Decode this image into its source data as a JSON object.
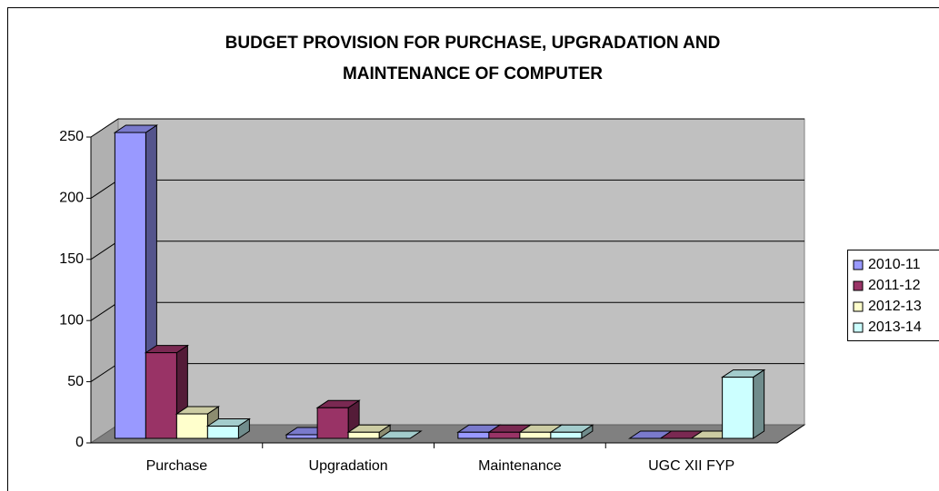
{
  "chart_data": {
    "type": "bar3d",
    "title": [
      "BUDGET PROVISION FOR PURCHASE, UPGRADATION AND",
      "MAINTENANCE OF COMPUTER"
    ],
    "categories": [
      "Purchase",
      "Upgradation",
      "Maintenance",
      "UGC XII FYP"
    ],
    "series": [
      {
        "name": "2010-11",
        "color": "#9999ff",
        "values": [
          250,
          3,
          5,
          0
        ]
      },
      {
        "name": "2011-12",
        "color": "#993366",
        "values": [
          70,
          25,
          5,
          0
        ]
      },
      {
        "name": "2012-13",
        "color": "#ffffcc",
        "values": [
          20,
          5,
          5,
          0
        ]
      },
      {
        "name": "2013-14",
        "color": "#ccffff",
        "values": [
          10,
          0,
          5,
          50
        ]
      }
    ],
    "ylim": [
      0,
      250
    ],
    "yticks": [
      0,
      50,
      100,
      150,
      200,
      250
    ],
    "grid": true,
    "legend": "right"
  }
}
